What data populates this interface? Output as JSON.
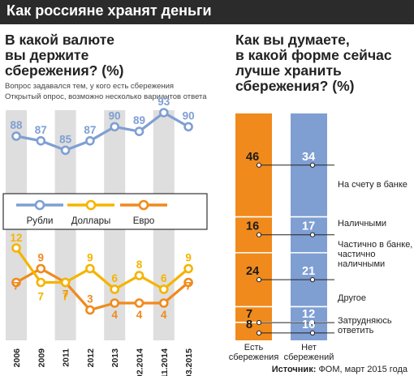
{
  "header": {
    "title": "Как россияне хранят деньги"
  },
  "left": {
    "title": "В какой валюте вы держите сбережения? (%)",
    "title_lines": [
      "В какой валюте",
      "вы держите",
      "сбережения? (%)"
    ],
    "note1": "Вопрос задавался тем, у кого есть сбережения",
    "note2": "Открытый опрос, возможно несколько вариантов ответа"
  },
  "right": {
    "title": "Как вы думаете, в какой форме сейчас лучше хранить сбережения? (%)",
    "title_lines": [
      "Как вы думаете,",
      "в какой форме сейчас",
      "лучше хранить",
      "сбережения? (%)"
    ]
  },
  "source": {
    "label": "Источник:",
    "text": "ФОМ, март 2015 года"
  },
  "colors": {
    "blue": "#7f9fd3",
    "yellow": "#f5b400",
    "orange": "#f08a1c",
    "band": "#dedede",
    "dark": "#2b2b2b"
  },
  "chart_data": [
    {
      "type": "line",
      "title": "В какой валюте вы держите сбережения? (%)",
      "categories": [
        "2006",
        "2009",
        "2011",
        "2012",
        "2013",
        "02.2014",
        "11.2014",
        "03.2015"
      ],
      "series": [
        {
          "name": "Рубли",
          "values": [
            88,
            87,
            85,
            87,
            90,
            89,
            93,
            90
          ],
          "color": "#7f9fd3"
        },
        {
          "name": "Доллары",
          "values": [
            12,
            7,
            7,
            9,
            6,
            8,
            6,
            9
          ],
          "color": "#f5b400"
        },
        {
          "name": "Евро",
          "values": [
            7,
            9,
            7,
            3,
            4,
            4,
            4,
            7
          ],
          "color": "#f08a1c"
        }
      ],
      "legend": "middle"
    },
    {
      "type": "bar",
      "stacked": true,
      "title": "Как вы думаете, в какой форме сейчас лучше хранить сбережения? (%)",
      "categories": [
        "Есть сбережения",
        "Нет сбережений"
      ],
      "category_lines": [
        [
          "Есть",
          "сбережения"
        ],
        [
          "Нет",
          "сбережений"
        ]
      ],
      "series": [
        {
          "name": "На счету в банке",
          "name_lines": [
            "На счету в банке"
          ],
          "values": [
            46,
            34
          ]
        },
        {
          "name": "Наличными",
          "name_lines": [
            "Наличными"
          ],
          "values": [
            16,
            17
          ]
        },
        {
          "name": "Частично в банке, частично наличными",
          "name_lines": [
            "Частично в банке,",
            "частично",
            "наличными"
          ],
          "values": [
            24,
            21
          ]
        },
        {
          "name": "Другое",
          "name_lines": [
            "Другое"
          ],
          "values": [
            7,
            12
          ]
        },
        {
          "name": "Затрудняюсь ответить",
          "name_lines": [
            "Затрудняюсь",
            "ответить"
          ],
          "values": [
            8,
            16
          ]
        }
      ],
      "bar_colors": [
        "#f08a1c",
        "#7f9fd3"
      ]
    }
  ]
}
